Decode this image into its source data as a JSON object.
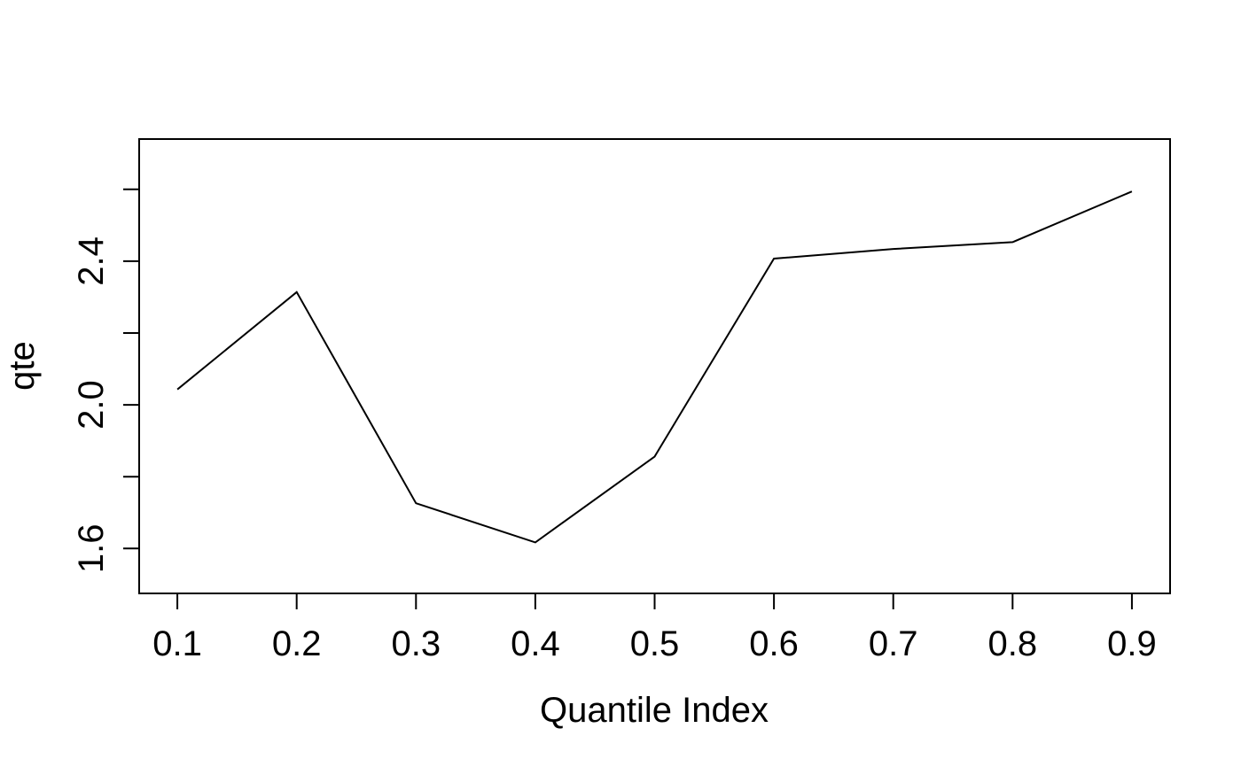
{
  "chart_data": {
    "type": "line",
    "title": "",
    "xlabel": "Quantile Index",
    "ylabel": "qte",
    "x": [
      0.1,
      0.2,
      0.3,
      0.4,
      0.5,
      0.6,
      0.7,
      0.8,
      0.9
    ],
    "series": [
      {
        "values": [
          2.043,
          2.314,
          1.726,
          1.617,
          1.856,
          2.407,
          2.434,
          2.453,
          2.594
        ]
      }
    ],
    "xlim": [
      0.068,
      0.932
    ],
    "ylim": [
      1.475,
      2.74
    ],
    "x_ticks": [
      0.1,
      0.2,
      0.3,
      0.4,
      0.5,
      0.6,
      0.7,
      0.8,
      0.9
    ],
    "x_tick_labels": [
      "0.1",
      "0.2",
      "0.3",
      "0.4",
      "0.5",
      "0.6",
      "0.7",
      "0.8",
      "0.9"
    ],
    "y_ticks": [
      1.6,
      1.8,
      2.0,
      2.2,
      2.4,
      2.6
    ],
    "y_tick_labels": [
      "1.6",
      "",
      "2.0",
      "",
      "2.4",
      ""
    ],
    "grid": false,
    "legend": "none",
    "line_color": "#000000"
  }
}
